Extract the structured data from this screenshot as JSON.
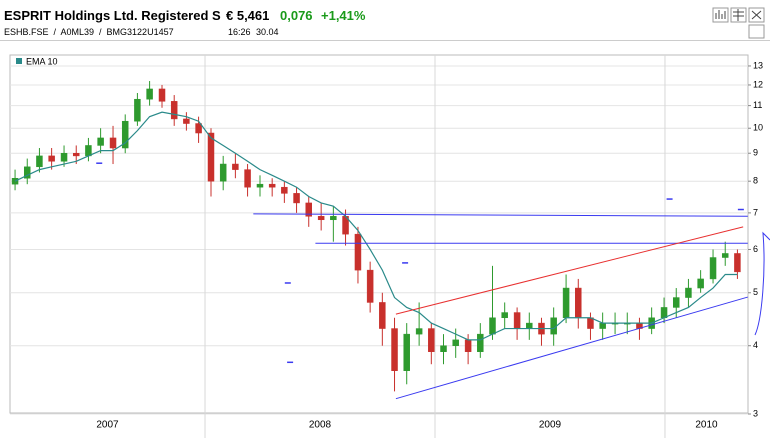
{
  "header": {
    "title": "ESPRIT Holdings Ltd. Registered S",
    "price": "€ 5,461",
    "change": "0,076",
    "change_pct": "+1,41%",
    "ids": "ESHB.FSE  /  A0ML39  /  BMG3122U1457",
    "time": "16:26",
    "date": "30.04"
  },
  "chart_data": {
    "type": "candlestick",
    "legend": "EMA 10",
    "log_scale": true,
    "grid": true,
    "xlim": [
      2007.152,
      2010.361
    ],
    "xticks": [
      {
        "value": 2007,
        "label": "2007"
      },
      {
        "value": 2008,
        "label": "2008"
      },
      {
        "value": 2009,
        "label": "2009"
      },
      {
        "value": 2010,
        "label": "2010"
      }
    ],
    "ylim": [
      3,
      13.5
    ],
    "yticks": [
      3,
      4,
      5,
      6,
      7,
      8,
      9,
      10,
      11,
      12,
      13
    ],
    "up_color": "#2e9a2e",
    "down_color": "#c8302c",
    "ema_color": "#2a8a8a",
    "x": [
      2007.174,
      2007.227,
      2007.28,
      2007.333,
      2007.387,
      2007.44,
      2007.493,
      2007.546,
      2007.6,
      2007.653,
      2007.706,
      2007.759,
      2007.813,
      2007.866,
      2007.919,
      2007.972,
      2008.026,
      2008.079,
      2008.132,
      2008.185,
      2008.239,
      2008.292,
      2008.345,
      2008.398,
      2008.451,
      2008.505,
      2008.558,
      2008.611,
      2008.665,
      2008.718,
      2008.771,
      2008.824,
      2008.877,
      2008.931,
      2008.984,
      2009.037,
      2009.09,
      2009.144,
      2009.197,
      2009.25,
      2009.303,
      2009.357,
      2009.41,
      2009.463,
      2009.516,
      2009.57,
      2009.623,
      2009.676,
      2009.729,
      2009.783,
      2009.836,
      2009.889,
      2009.942,
      2009.996,
      2010.049,
      2010.102,
      2010.155,
      2010.209,
      2010.262,
      2010.315
    ],
    "open": [
      7.9,
      8.1,
      8.5,
      8.9,
      8.7,
      9.0,
      8.9,
      9.3,
      9.6,
      9.2,
      10.3,
      11.3,
      11.8,
      11.2,
      10.4,
      10.2,
      9.8,
      8.0,
      8.6,
      8.4,
      7.8,
      7.9,
      7.8,
      7.6,
      7.3,
      6.9,
      6.8,
      6.9,
      6.4,
      5.5,
      4.8,
      4.3,
      3.6,
      4.2,
      4.3,
      3.9,
      4.0,
      4.1,
      3.9,
      4.2,
      4.5,
      4.6,
      4.3,
      4.4,
      4.2,
      4.5,
      5.1,
      4.5,
      4.3,
      4.4,
      4.4,
      4.4,
      4.3,
      4.5,
      4.7,
      4.9,
      5.1,
      5.3,
      5.8,
      5.9
    ],
    "high": [
      8.4,
      8.8,
      9.2,
      9.2,
      9.3,
      9.3,
      9.6,
      10.0,
      10.1,
      10.6,
      11.6,
      12.2,
      12.0,
      11.5,
      10.7,
      10.5,
      10.0,
      8.9,
      9.0,
      8.6,
      8.2,
      8.1,
      8.0,
      7.8,
      7.5,
      7.3,
      7.2,
      7.1,
      6.6,
      5.7,
      5.0,
      4.5,
      4.4,
      4.8,
      4.4,
      4.2,
      4.3,
      4.2,
      4.4,
      5.6,
      4.8,
      4.7,
      4.6,
      4.5,
      4.7,
      5.4,
      5.3,
      4.6,
      4.6,
      4.6,
      4.6,
      4.5,
      4.7,
      4.9,
      5.1,
      5.3,
      5.5,
      6.0,
      6.2,
      6.0
    ],
    "low": [
      7.7,
      7.9,
      8.3,
      8.4,
      8.5,
      8.6,
      8.7,
      9.0,
      8.6,
      9.0,
      10.1,
      11.0,
      10.9,
      10.1,
      9.9,
      9.4,
      7.5,
      7.7,
      8.1,
      7.5,
      7.5,
      7.5,
      7.3,
      7.0,
      6.6,
      6.5,
      6.2,
      6.1,
      5.2,
      4.6,
      4.0,
      3.3,
      3.4,
      4.0,
      3.7,
      3.7,
      3.8,
      3.7,
      3.8,
      4.1,
      4.3,
      4.1,
      4.1,
      4.0,
      4.0,
      4.4,
      4.3,
      4.1,
      4.1,
      4.2,
      4.2,
      4.1,
      4.2,
      4.4,
      4.5,
      4.7,
      5.0,
      5.2,
      5.6,
      5.3
    ],
    "close": [
      8.1,
      8.5,
      8.9,
      8.7,
      9.0,
      8.9,
      9.3,
      9.6,
      9.2,
      10.3,
      11.3,
      11.8,
      11.2,
      10.4,
      10.2,
      9.8,
      8.0,
      8.6,
      8.4,
      7.8,
      7.9,
      7.8,
      7.6,
      7.3,
      6.9,
      6.8,
      6.9,
      6.4,
      5.5,
      4.8,
      4.3,
      3.6,
      4.2,
      4.3,
      3.9,
      4.0,
      4.1,
      3.9,
      4.2,
      4.5,
      4.6,
      4.3,
      4.4,
      4.2,
      4.5,
      5.1,
      4.5,
      4.3,
      4.4,
      4.4,
      4.4,
      4.3,
      4.5,
      4.7,
      4.9,
      5.1,
      5.3,
      5.8,
      5.9,
      5.46
    ],
    "ema": [
      8.0,
      8.2,
      8.4,
      8.5,
      8.6,
      8.7,
      8.9,
      9.1,
      9.1,
      9.4,
      9.9,
      10.5,
      10.7,
      10.6,
      10.5,
      10.3,
      9.6,
      9.3,
      9.0,
      8.7,
      8.4,
      8.2,
      8.0,
      7.8,
      7.5,
      7.3,
      7.2,
      6.9,
      6.5,
      6.0,
      5.5,
      4.9,
      4.7,
      4.6,
      4.4,
      4.3,
      4.2,
      4.1,
      4.1,
      4.2,
      4.3,
      4.3,
      4.3,
      4.3,
      4.3,
      4.5,
      4.5,
      4.5,
      4.4,
      4.4,
      4.4,
      4.4,
      4.4,
      4.5,
      4.6,
      4.7,
      4.9,
      5.1,
      5.4,
      5.4
    ],
    "drawings": [
      {
        "color": "#3a3af0",
        "points": [
          [
            2008.21,
            6.97
          ],
          [
            2010.36,
            6.9
          ]
        ]
      },
      {
        "color": "#3a3af0",
        "points": [
          [
            2008.48,
            6.16
          ],
          [
            2010.36,
            6.16
          ]
        ]
      },
      {
        "color": "#e83030",
        "points": [
          [
            2008.83,
            4.57
          ],
          [
            2010.34,
            6.6
          ]
        ]
      },
      {
        "color": "#3a3af0",
        "points": [
          [
            2008.83,
            3.2
          ],
          [
            2010.36,
            4.91
          ]
        ]
      }
    ],
    "markers": {
      "color": "#3a3af0",
      "x": [
        2007.54,
        2008.36,
        2008.37,
        2008.87,
        2010.02,
        2010.33
      ],
      "y": [
        8.63,
        5.21,
        3.73,
        5.67,
        7.42,
        7.1
      ]
    }
  }
}
